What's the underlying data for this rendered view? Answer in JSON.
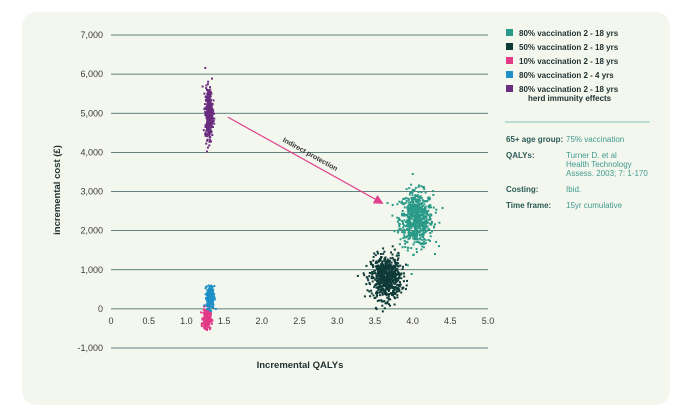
{
  "chart_data": {
    "type": "scatter",
    "xlabel": "Incremental QALYs",
    "ylabel": "incremental cost (£)",
    "xlim": [
      0,
      5.0
    ],
    "ylim": [
      -1000,
      7000
    ],
    "x_ticks": [
      "0",
      "0.5",
      "1.0",
      "1.5",
      "2.0",
      "2.5",
      "3.0",
      "3.5",
      "4.0",
      "4.5",
      "5.0"
    ],
    "y_ticks": [
      "-1,000",
      "0",
      "1,000",
      "2,000",
      "3,000",
      "4,000",
      "5,000",
      "6,000",
      "7,000"
    ],
    "y_tick_values": [
      -1000,
      0,
      1000,
      2000,
      3000,
      4000,
      5000,
      6000,
      7000
    ],
    "grid": "horizontal",
    "legend_position": "right",
    "series": [
      {
        "name": "80% vaccination 2 - 18 yrs",
        "color": "#2a9a88",
        "center": [
          4.05,
          2300
        ],
        "spread": [
          0.22,
          700
        ],
        "n": 650
      },
      {
        "name": "50% vaccination 2 - 18 yrs",
        "color": "#0e3a38",
        "center": [
          3.65,
          800
        ],
        "spread": [
          0.2,
          550
        ],
        "n": 650
      },
      {
        "name": "10% vaccination 2 - 18 yrs",
        "color": "#e23a86",
        "center": [
          1.27,
          -250
        ],
        "spread": [
          0.05,
          250
        ],
        "n": 250
      },
      {
        "name": "80% vaccination 2 - 4 yrs",
        "color": "#1e90c8",
        "center": [
          1.32,
          300
        ],
        "spread": [
          0.05,
          280
        ],
        "n": 250
      },
      {
        "name": "80% vaccination 2 - 18 yrs herd immunity effects",
        "color": "#6a2c7e",
        "center": [
          1.3,
          5000
        ],
        "spread": [
          0.05,
          650
        ],
        "n": 350
      }
    ],
    "legend_lines": [
      [
        "80% vaccination 2 - 18 yrs"
      ],
      [
        "50% vaccination 2 - 18 yrs"
      ],
      [
        "10% vaccination 2 - 18 yrs"
      ],
      [
        "80% vaccination 2 - 4 yrs"
      ],
      [
        "80% vaccination 2 - 18 yrs",
        "herd immunity effects"
      ]
    ],
    "annotation": {
      "text": "Indirect protection",
      "from": [
        1.55,
        4900
      ],
      "to": [
        3.6,
        2700
      ]
    }
  },
  "info": [
    {
      "label": "65+ age group:",
      "value": [
        "75% vaccination"
      ]
    },
    {
      "label": "QALYs:",
      "value": [
        "Turner D. et al",
        "Health Technology",
        "Assess. 2003; 7: 1-170"
      ]
    },
    {
      "label": "Costing:",
      "value": [
        "Ibid."
      ]
    },
    {
      "label": "Time frame:",
      "value": [
        "15yr cumulative"
      ]
    }
  ],
  "colors": {
    "panel": "#f4f7ee",
    "grid": "#2f5a57",
    "arrow": "#e0408a",
    "divider": "#7fc4b8"
  }
}
